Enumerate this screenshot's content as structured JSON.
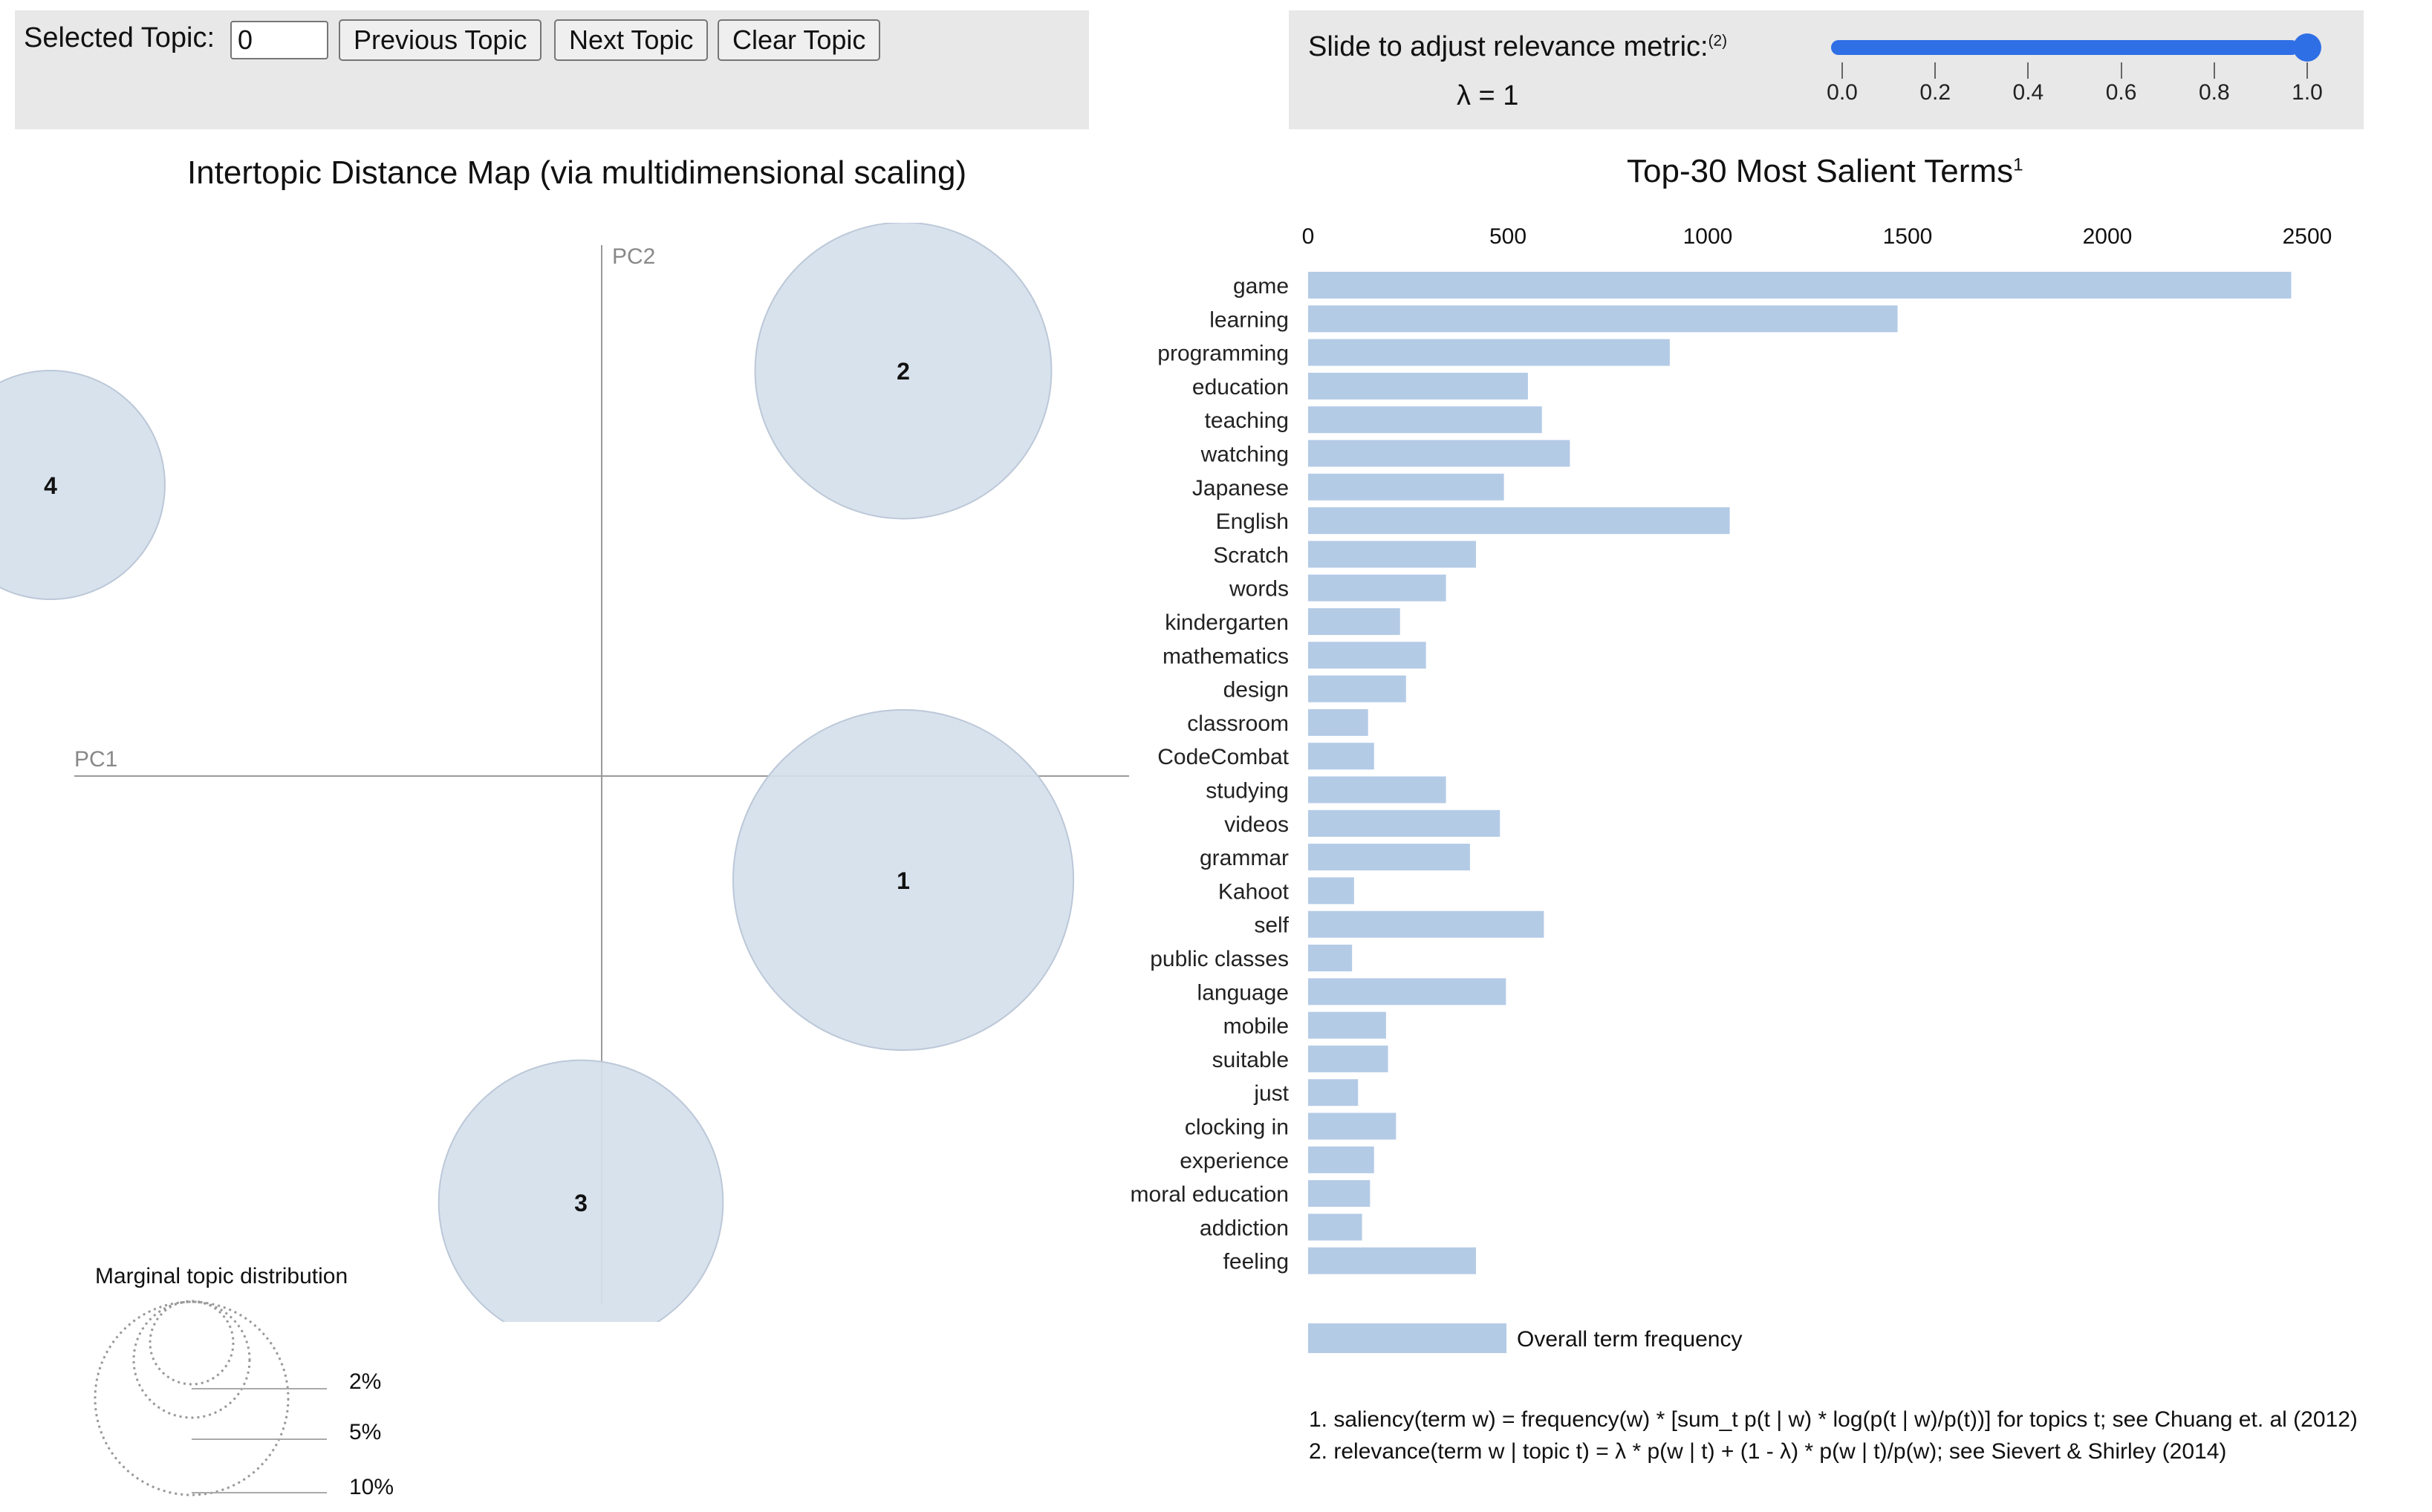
{
  "controls": {
    "selected_topic_label": "Selected Topic:",
    "selected_topic_value": "0",
    "previous_topic": "Previous Topic",
    "next_topic": "Next Topic",
    "clear_topic": "Clear Topic",
    "slider_label": "Slide to adjust relevance metric:",
    "slider_label_note": "(2)",
    "lambda_text": "λ = 1",
    "lambda_value": 1.0,
    "slider_ticks": [
      "0.0",
      "0.2",
      "0.4",
      "0.6",
      "0.8",
      "1.0"
    ]
  },
  "mds": {
    "title": "Intertopic Distance Map (via multidimensional scaling)",
    "axis_x_label": "PC1",
    "axis_y_label": "PC2",
    "topics": [
      "1",
      "2",
      "3",
      "4"
    ],
    "legend_title": "Marginal topic distribution",
    "legend_levels": [
      "2%",
      "5%",
      "10%"
    ]
  },
  "bars": {
    "title": "Top-30 Most Salient Terms",
    "title_note": "1",
    "legend_label": "Overall term frequency"
  },
  "footnotes": {
    "note1": "1. saliency(term w) = frequency(w) * [sum_t p(t | w) * log(p(t | w)/p(t))] for topics t; see Chuang et. al (2012)",
    "note2": "2. relevance(term w | topic t) = λ * p(w | t) + (1 - λ) * p(w | t)/p(w); see Sievert & Shirley (2014)"
  },
  "colors": {
    "bar": "#b4cbe6",
    "bubble_fill": "#d5dfec",
    "bubble_stroke": "#bcc8d8",
    "slider": "#2f6fe6",
    "panel_bg": "#e8e8e8"
  },
  "chart_data": [
    {
      "type": "bar",
      "orientation": "horizontal",
      "title": "Top-30 Most Salient Terms",
      "xlim": [
        0,
        2500
      ],
      "x_ticks": [
        0,
        500,
        1000,
        1500,
        2000,
        2500
      ],
      "categories": [
        "game",
        "learning",
        "programming",
        "education",
        "teaching",
        "watching",
        "Japanese",
        "English",
        "Scratch",
        "words",
        "kindergarten",
        "mathematics",
        "design",
        "classroom",
        "CodeCombat",
        "studying",
        "videos",
        "grammar",
        "Kahoot",
        "self",
        "public classes",
        "language",
        "mobile",
        "suitable",
        "just",
        "clocking in",
        "experience",
        "moral education",
        "addiction",
        "feeling"
      ],
      "values": [
        2460,
        1475,
        905,
        550,
        585,
        655,
        490,
        1055,
        420,
        345,
        230,
        295,
        245,
        150,
        165,
        345,
        480,
        405,
        115,
        590,
        110,
        495,
        195,
        200,
        125,
        220,
        165,
        155,
        135,
        420
      ]
    },
    {
      "type": "scatter",
      "title": "Intertopic Distance Map (via multidimensional scaling)",
      "xlabel": "PC1",
      "ylabel": "PC2",
      "xlim": [
        -0.6,
        0.6
      ],
      "ylim": [
        -0.6,
        0.6
      ],
      "points": [
        {
          "topic": "1",
          "pc1": 0.29,
          "pc2": -0.1,
          "size_pct": 24.8
        },
        {
          "topic": "2",
          "pc1": 0.29,
          "pc2": 0.39,
          "size_pct": 18.8
        },
        {
          "topic": "3",
          "pc1": -0.02,
          "pc2": -0.41,
          "size_pct": 17.3
        },
        {
          "topic": "4",
          "pc1": -0.53,
          "pc2": 0.28,
          "size_pct": 11.2
        }
      ]
    }
  ]
}
